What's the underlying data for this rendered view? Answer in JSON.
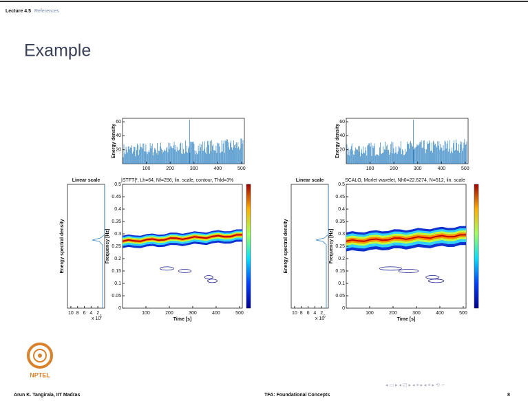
{
  "header": {
    "lecture": "Lecture 4.5",
    "section": "References"
  },
  "title": "Example",
  "panels": [
    {
      "top": {
        "ylabel": "Energy density",
        "ylim": [
          0,
          65
        ],
        "yticks": [
          20,
          40,
          60
        ],
        "xlim": [
          0,
          512
        ],
        "xticks": [
          100,
          200,
          300,
          400,
          500
        ]
      },
      "side": {
        "title": "Linear scale",
        "ylabel": "Energy spectral density",
        "xlim": [
          11,
          0
        ],
        "xticks": [
          10,
          8,
          6,
          4,
          2
        ],
        "exponent_base": "x 10",
        "exponent": "5"
      },
      "main": {
        "title": "|STFT|², Lh=64, Nf=256, lin. scale, contour, Thld=3%",
        "ylabel": "Frequency [Hz]",
        "xlabel": "Time [s]",
        "ylim": [
          0,
          0.5
        ],
        "yticks": [
          0,
          0.05,
          0.1,
          0.15,
          0.2,
          0.25,
          0.3,
          0.35,
          0.4,
          0.45,
          0.5
        ],
        "xlim": [
          0,
          512
        ],
        "xticks": [
          100,
          200,
          300,
          400,
          500
        ]
      }
    },
    {
      "top": {
        "ylabel": "Energy density",
        "ylim": [
          0,
          65
        ],
        "yticks": [
          20,
          40,
          60
        ],
        "xlim": [
          0,
          512
        ],
        "xticks": [
          100,
          200,
          300,
          400,
          500
        ]
      },
      "side": {
        "title": "Linear scale",
        "ylabel": "Energy spectral density",
        "xlim": [
          11,
          0
        ],
        "xticks": [
          10,
          8,
          6,
          4,
          2
        ],
        "exponent_base": "x 10",
        "exponent": "5"
      },
      "main": {
        "title": "SCALO, Morlet wavelet, Nh0=22.6274, N=512, lin. scale",
        "ylabel": "Frequency [Hz]",
        "xlabel": "Time [s]",
        "ylim": [
          0,
          0.5
        ],
        "yticks": [
          0,
          0.05,
          0.1,
          0.15,
          0.2,
          0.25,
          0.3,
          0.35,
          0.4,
          0.45,
          0.5
        ],
        "xlim": [
          0,
          512
        ],
        "xticks": [
          100,
          200,
          300,
          400,
          500
        ]
      }
    }
  ],
  "logo": "NPTEL",
  "footer": {
    "author": "Arun K. Tangirala, IIT Madras",
    "course": "TFA: Foundational Concepts",
    "page": "8"
  }
}
